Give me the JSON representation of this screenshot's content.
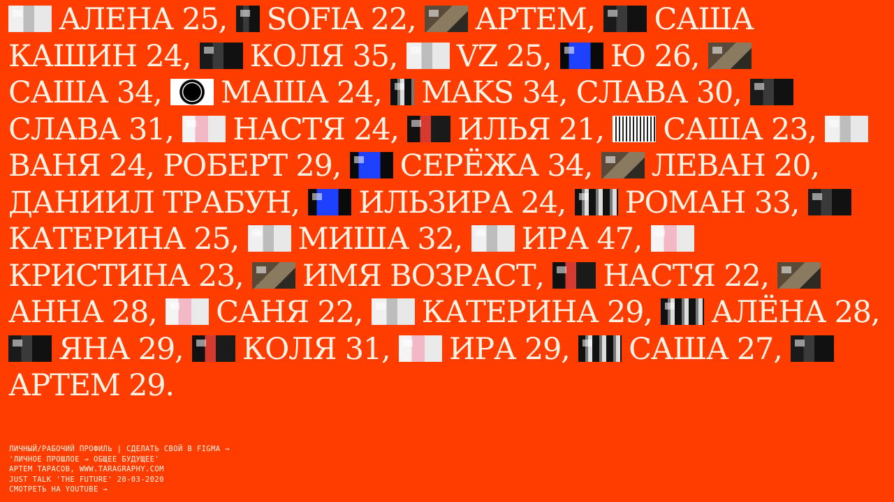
{
  "accent_color": "#ff3d00",
  "text_color": "#fff3e6",
  "participants": [
    "АЛЕНА 25,",
    "SOFIA 22,",
    "АРТЕМ,",
    "САША",
    "КАШИН 24,",
    "КОЛЯ 35,",
    "VZ 25,",
    "Ю 26,",
    "САША 34,",
    "МАША 24,",
    "MAKS 34,",
    "СЛАВА 30,",
    "СЛАВА 31,",
    "НАСТЯ 24,",
    "ИЛЬЯ 21,",
    "САША",
    "23,",
    "ВАНЯ 24,",
    "РОБЕРТ 29,",
    "СЕРЁЖА 34,",
    "ЛЕВАН 20,",
    "ДАНИИЛ ТРАБУН,",
    "ИЛЬЗИРА 24,",
    "РОМАН 33,",
    "КАТЕРИНА 25,",
    "МИША 32,",
    "ИРА 47,",
    "КРИСТИНА 23,",
    "ИМЯ ВОЗРАСТ,",
    "НАСТЯ 22,",
    "АННА 28,",
    "САНЯ 22,",
    "КАТЕРИНА 29,",
    "АЛЁНА 28,",
    "ЯНА 29,",
    "КОЛЯ 31,",
    "ИРА 29,",
    "САША 27,",
    "АРТЕМ 29."
  ],
  "footer": {
    "line1": "ЛИЧНЫЙ/РАБОЧИЙ ПРОФИЛЬ | СДЕЛАТЬ СВОЙ В FIGMA →",
    "line2": "'ЛИЧНОЕ ПРОШЛОЕ → ОБЩЕЕ БУДУЩЕЕ'",
    "line3": "АРТЕМ ТАРАСОВ, WWW.TARAGRAPHY.COM",
    "line4": "JUST TALK 'THE FUTURE' 20-03-2020",
    "line5": "СМОТРЕТЬ НА YOUTUBE →"
  }
}
